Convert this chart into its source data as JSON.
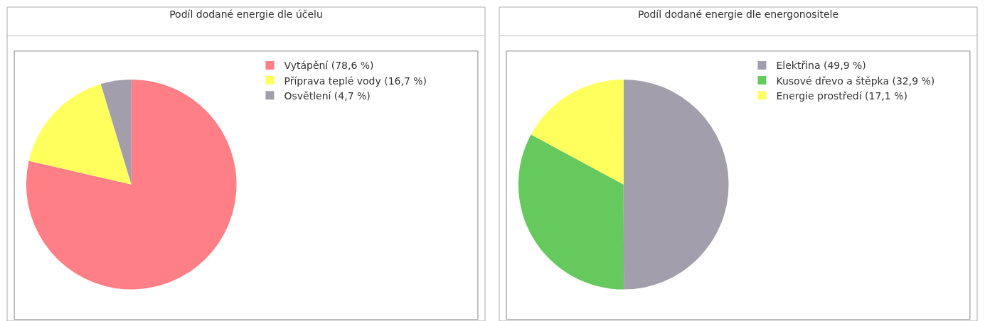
{
  "chart_data": [
    {
      "type": "pie",
      "title": "Podíl dodané energie dle účelu",
      "categories": [
        "Vytápění (78,6 %)",
        "Příprava teplé vody (16,7 %)",
        "Osvětlení (4,7 %)"
      ],
      "values": [
        78.6,
        16.7,
        4.7
      ],
      "colors": [
        "#ff7f86",
        "#ffff5e",
        "#a39eab"
      ],
      "legend": "right"
    },
    {
      "type": "pie",
      "title": "Podíl dodané energie dle energonositele",
      "categories": [
        "Elektřina (49,9 %)",
        "Kusové dřevo a štěpka (32,9 %)",
        "Energie prostředí (17,1 %)"
      ],
      "values": [
        49.9,
        32.9,
        17.1
      ],
      "colors": [
        "#a39eab",
        "#66c95e",
        "#ffff5e"
      ],
      "legend": "right"
    }
  ]
}
